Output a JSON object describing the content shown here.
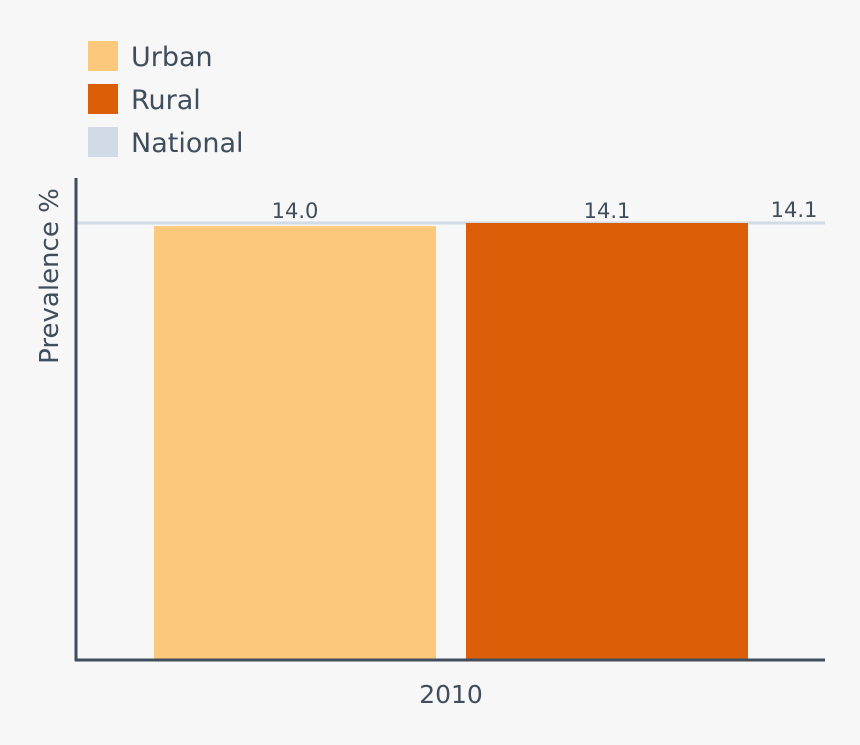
{
  "chart_data": {
    "type": "bar",
    "categories": [
      "2010"
    ],
    "series": [
      {
        "name": "Urban",
        "values": [
          14.0
        ],
        "color": "#fcc97c"
      },
      {
        "name": "Rural",
        "values": [
          14.1
        ],
        "color": "#dd5e09"
      }
    ],
    "reference_line": {
      "name": "National",
      "value": 14.1,
      "label": "14.1",
      "color": "#d0dbe7"
    },
    "value_labels": [
      "14.0",
      "14.1"
    ],
    "ylabel": "Prevalence %",
    "xlabel": "",
    "ylim": [
      0,
      14.1
    ],
    "grid": false,
    "legend_position": "top-left",
    "axis_color": "#3f4d5c"
  }
}
